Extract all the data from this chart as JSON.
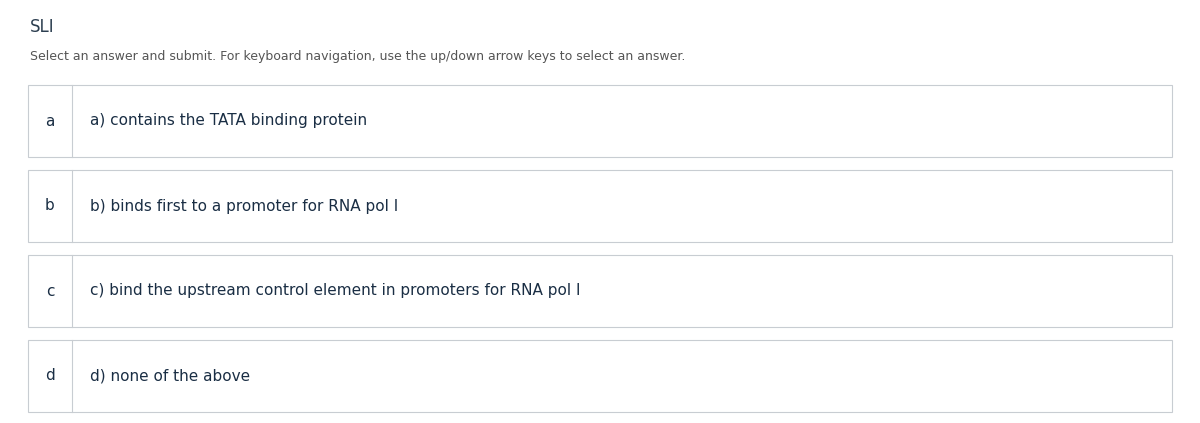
{
  "title": "SLI",
  "instruction": "Select an answer and submit. For keyboard navigation, use the up/down arrow keys to select an answer.",
  "options": [
    {
      "key": "a",
      "text": "a) contains the TATA binding protein"
    },
    {
      "key": "b",
      "text": "b) binds first to a promoter for RNA pol I"
    },
    {
      "key": "c",
      "text": "c) bind the upstream control element in promoters for RNA pol I"
    },
    {
      "key": "d",
      "text": "d) none of the above"
    }
  ],
  "bg_color": "#ffffff",
  "title_color": "#2c3e50",
  "instruction_color": "#555555",
  "option_key_color": "#1a2e44",
  "option_text_color": "#1a2e44",
  "border_color": "#c8cdd2",
  "divider_color": "#c8cdd2",
  "title_fontsize": 12,
  "instruction_fontsize": 9,
  "option_key_fontsize": 11,
  "option_text_fontsize": 11
}
